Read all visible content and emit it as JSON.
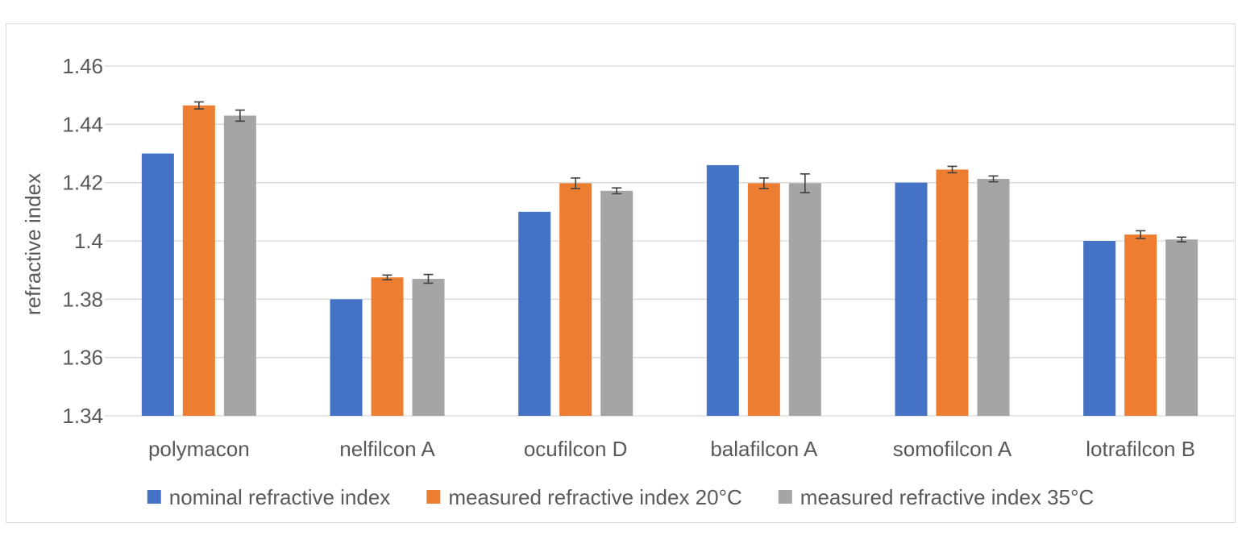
{
  "chart_data": {
    "type": "bar",
    "title": "",
    "xlabel": "",
    "ylabel": "refractive index",
    "ylim": [
      1.34,
      1.46
    ],
    "yticks": [
      1.34,
      1.36,
      1.38,
      1.4,
      1.42,
      1.44,
      1.46
    ],
    "ytick_labels": [
      "1.34",
      "1.36",
      "1.38",
      "1.4",
      "1.42",
      "1.44",
      "1.46"
    ],
    "grid": true,
    "legend_position": "bottom",
    "categories": [
      "polymacon",
      "nelfilcon A",
      "ocufilcon D",
      "balafilcon A",
      "somofilcon A",
      "lotrafilcon B"
    ],
    "series": [
      {
        "name": "nominal refractive index",
        "color": "#4472c4",
        "values": [
          1.43,
          1.38,
          1.41,
          1.426,
          1.42,
          1.4
        ],
        "errors": [
          0,
          0,
          0,
          0,
          0,
          0
        ]
      },
      {
        "name": "measured refractive index 20°C",
        "color": "#ed7d31",
        "values": [
          1.4465,
          1.3875,
          1.4198,
          1.4198,
          1.4245,
          1.4022
        ],
        "errors": [
          0.0012,
          0.0008,
          0.0018,
          0.0018,
          0.0011,
          0.0013
        ]
      },
      {
        "name": "measured refractive index 35°C",
        "color": "#a5a5a5",
        "values": [
          1.443,
          1.387,
          1.4172,
          1.4198,
          1.4213,
          1.4005
        ],
        "errors": [
          0.0019,
          0.0015,
          0.001,
          0.0032,
          0.001,
          0.0008
        ]
      }
    ]
  }
}
